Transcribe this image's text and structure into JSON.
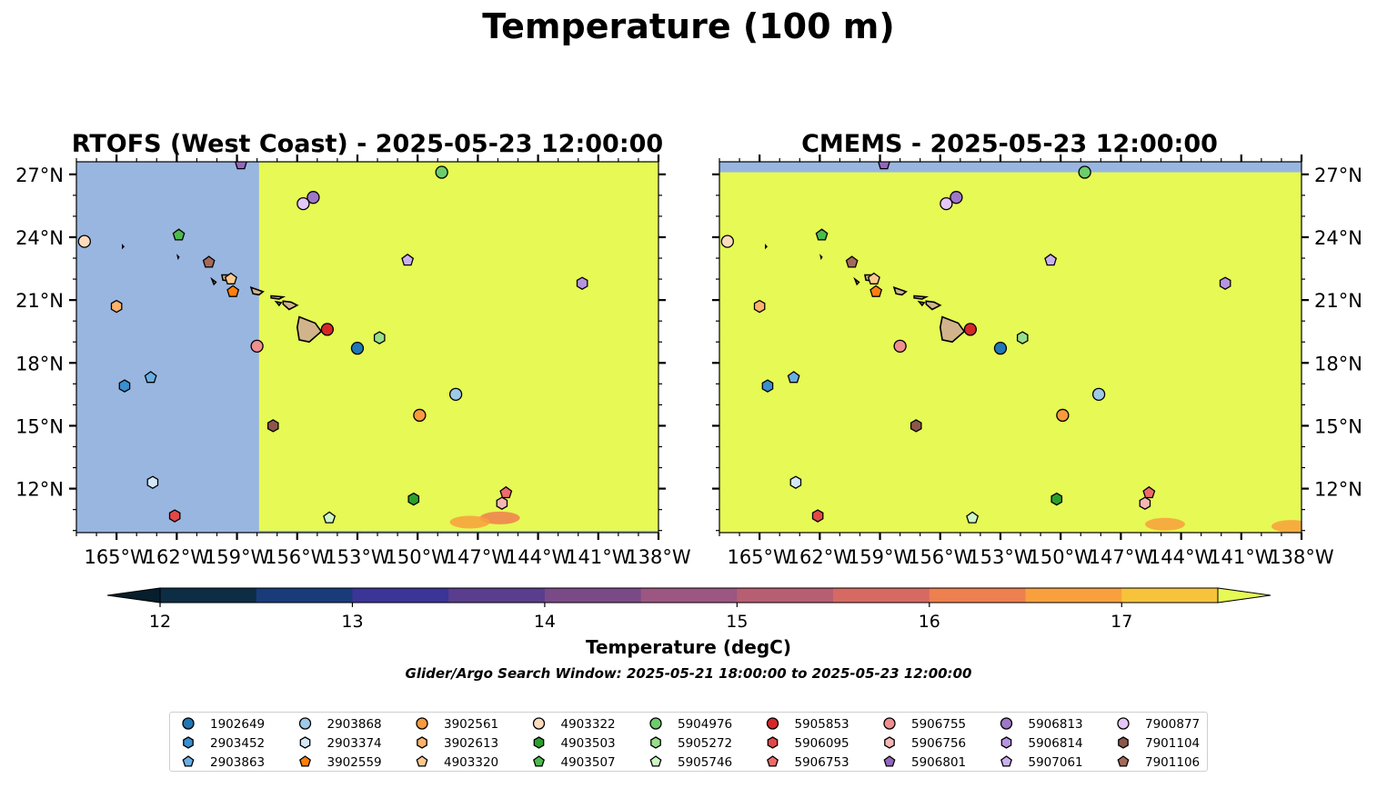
{
  "figure": {
    "suptitle": "Temperature (100 m)",
    "subtitle": "Glider/Argo Search Window: 2025-05-21 18:00:00 to 2025-05-23 12:00:00"
  },
  "chart_data": [
    {
      "type": "heatmap",
      "title": "RTOFS (West Coast) - 2025-05-23 12:00:00",
      "xlim": [
        -167,
        -138
      ],
      "ylim": [
        9.9,
        27.6
      ],
      "x_ticks": [
        "165°W",
        "162°W",
        "159°W",
        "156°W",
        "153°W",
        "150°W",
        "147°W",
        "144°W",
        "141°W",
        "138°W"
      ],
      "y_ticks": [
        "12°N",
        "15°N",
        "18°N",
        "21°N",
        "24°N",
        "27°N"
      ],
      "y_tick_side": "left",
      "no_data_region": {
        "lon_min": -167,
        "lon_max": -157.9,
        "color": "#98b6e0"
      },
      "field_value": "> 17.5",
      "warm_patches": [
        {
          "lon": -145.9,
          "lat": 10.6,
          "value": 16.3
        },
        {
          "lon": -147.4,
          "lat": 10.4,
          "value": 16.8
        }
      ]
    },
    {
      "type": "heatmap",
      "title": "CMEMS - 2025-05-23 12:00:00",
      "xlim": [
        -167,
        -138
      ],
      "ylim": [
        9.9,
        27.6
      ],
      "x_ticks": [
        "165°W",
        "162°W",
        "159°W",
        "156°W",
        "153°W",
        "150°W",
        "147°W",
        "144°W",
        "141°W",
        "138°W"
      ],
      "y_ticks": [
        "12°N",
        "15°N",
        "18°N",
        "21°N",
        "24°N",
        "27°N"
      ],
      "y_tick_side": "right",
      "no_data_region": {
        "lat_min": 27.1,
        "lat_max": 27.6,
        "color": "#98b6e0"
      },
      "field_value": "> 17.5",
      "warm_patches": [
        {
          "lon": -144.8,
          "lat": 10.3,
          "value": 16.8
        },
        {
          "lon": -138.5,
          "lat": 10.2,
          "value": 16.5
        }
      ]
    }
  ],
  "colorbar": {
    "label": "Temperature (degC)",
    "min": 12,
    "max": 17.5,
    "tick_labels": [
      "12",
      "13",
      "14",
      "15",
      "16",
      "17"
    ],
    "tick_values": [
      12,
      13,
      14,
      15,
      16,
      17
    ],
    "colors": [
      "#0d2d45",
      "#1a3b7a",
      "#3a3596",
      "#5a3d8c",
      "#7a4a86",
      "#9b5682",
      "#b85e72",
      "#d66a62",
      "#ee7f4f",
      "#f8a03d",
      "#f6c33b"
    ],
    "under_color": "#071e2c",
    "over_color": "#e6f955"
  },
  "floats": [
    {
      "id": "1902649",
      "lon": -153.0,
      "lat": 18.7,
      "marker": "circle",
      "color": "#1f77b4"
    },
    {
      "id": "2903452",
      "lon": -164.6,
      "lat": 16.9,
      "marker": "hexagon",
      "color": "#3a8fd0"
    },
    {
      "id": "2903863",
      "lon": -163.3,
      "lat": 17.3,
      "marker": "pentagon",
      "color": "#6aaee3"
    },
    {
      "id": "2903868",
      "lon": -148.1,
      "lat": 16.5,
      "marker": "circle",
      "color": "#9ecae8"
    },
    {
      "id": "2903374",
      "lon": -163.2,
      "lat": 12.3,
      "marker": "hexagon",
      "color": "#d2e8f6"
    },
    {
      "id": "3902559",
      "lon": -159.2,
      "lat": 21.4,
      "marker": "pentagon",
      "color": "#ff7f0e"
    },
    {
      "id": "3902561",
      "lon": -149.9,
      "lat": 15.5,
      "marker": "circle",
      "color": "#f99a3c"
    },
    {
      "id": "3902613",
      "lon": -165.0,
      "lat": 20.7,
      "marker": "hexagon",
      "color": "#fdb36b"
    },
    {
      "id": "4903320",
      "lon": -159.3,
      "lat": 22.0,
      "marker": "pentagon",
      "color": "#fdc98f"
    },
    {
      "id": "4903322",
      "lon": -166.6,
      "lat": 23.8,
      "marker": "circle",
      "color": "#fddcbc"
    },
    {
      "id": "4903503",
      "lon": -150.2,
      "lat": 11.5,
      "marker": "hexagon",
      "color": "#2ca02c"
    },
    {
      "id": "4903507",
      "lon": -161.9,
      "lat": 24.1,
      "marker": "pentagon",
      "color": "#4cbb4c"
    },
    {
      "id": "5904976",
      "lon": -148.8,
      "lat": 27.1,
      "marker": "circle",
      "color": "#6ccd6c"
    },
    {
      "id": "5905272",
      "lon": -151.9,
      "lat": 19.2,
      "marker": "hexagon",
      "color": "#98df8a"
    },
    {
      "id": "5905746",
      "lon": -154.4,
      "lat": 10.6,
      "marker": "pentagon",
      "color": "#cdf7c7"
    },
    {
      "id": "5905853",
      "lon": -154.5,
      "lat": 19.6,
      "marker": "circle",
      "color": "#d62728"
    },
    {
      "id": "5906095",
      "lon": -162.1,
      "lat": 10.7,
      "marker": "hexagon",
      "color": "#e34848"
    },
    {
      "id": "5906753",
      "lon": -145.6,
      "lat": 11.8,
      "marker": "pentagon",
      "color": "#ee6b6b"
    },
    {
      "id": "5906755",
      "lon": -158.0,
      "lat": 18.8,
      "marker": "circle",
      "color": "#f08f8f"
    },
    {
      "id": "5906756",
      "lon": -145.8,
      "lat": 11.3,
      "marker": "hexagon",
      "color": "#f7b6b6"
    },
    {
      "id": "5906801",
      "lon": -158.8,
      "lat": 27.5,
      "marker": "pentagon",
      "color": "#9467bd"
    },
    {
      "id": "5906813",
      "lon": -155.2,
      "lat": 25.9,
      "marker": "circle",
      "color": "#9e77c8"
    },
    {
      "id": "5906814",
      "lon": -141.8,
      "lat": 21.8,
      "marker": "hexagon",
      "color": "#b794e0"
    },
    {
      "id": "5907061",
      "lon": -150.5,
      "lat": 22.9,
      "marker": "pentagon",
      "color": "#cbb0ee"
    },
    {
      "id": "7900877",
      "lon": -155.7,
      "lat": 25.6,
      "marker": "circle",
      "color": "#e5c7f7"
    },
    {
      "id": "7901104",
      "lon": -157.2,
      "lat": 15.0,
      "marker": "hexagon",
      "color": "#8c564b"
    },
    {
      "id": "7901106",
      "lon": -160.4,
      "lat": 22.8,
      "marker": "pentagon",
      "color": "#a4695a"
    }
  ],
  "legend": {
    "ids": [
      "1902649",
      "2903452",
      "2903863",
      "2903868",
      "2903374",
      "3902559",
      "3902561",
      "3902613",
      "4903320",
      "4903322",
      "4903503",
      "4903507",
      "5904976",
      "5905272",
      "5905746",
      "5905853",
      "5906095",
      "5906753",
      "5906755",
      "5906756",
      "5906801",
      "5906813",
      "5906814",
      "5907061",
      "7900877",
      "7901104",
      "7901106"
    ]
  },
  "colors": {
    "land": "#d2b48c",
    "ocean_warm": "#e6f955",
    "masked": "#98b6e0"
  }
}
